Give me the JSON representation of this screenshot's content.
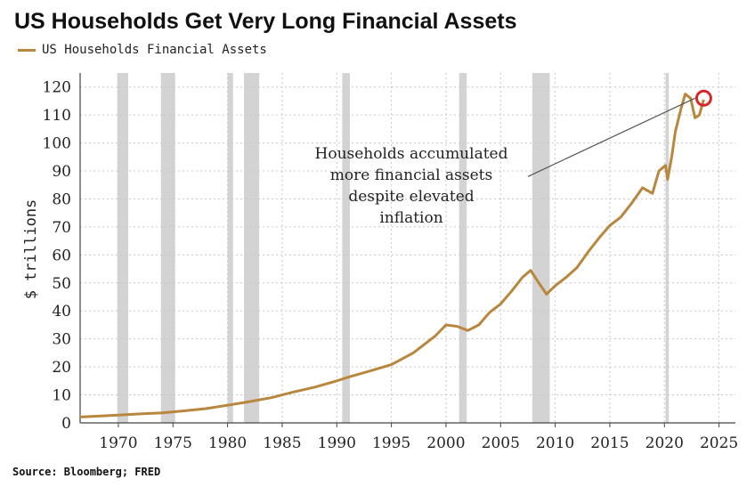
{
  "chart_data": {
    "type": "line",
    "title": "US Households Get Very Long Financial Assets",
    "ylabel": "$ trillions",
    "xlabel": "",
    "xlim": [
      1966.5,
      2026.5
    ],
    "ylim": [
      0,
      125
    ],
    "xticks": [
      1970,
      1975,
      1980,
      1985,
      1990,
      1995,
      2000,
      2005,
      2010,
      2015,
      2020,
      2025
    ],
    "yticks": [
      0,
      10,
      20,
      30,
      40,
      50,
      60,
      70,
      80,
      90,
      100,
      110,
      120
    ],
    "grid": true,
    "legend_position": "top-left",
    "series": [
      {
        "name": "US Households Financial Assets",
        "color": "#b8873d",
        "points": [
          [
            1966.5,
            2.1
          ],
          [
            1968,
            2.4
          ],
          [
            1970,
            2.8
          ],
          [
            1972,
            3.2
          ],
          [
            1974,
            3.6
          ],
          [
            1976,
            4.3
          ],
          [
            1978,
            5.1
          ],
          [
            1980,
            6.3
          ],
          [
            1982,
            7.6
          ],
          [
            1984,
            9.0
          ],
          [
            1986,
            11.0
          ],
          [
            1988,
            12.8
          ],
          [
            1990,
            15.0
          ],
          [
            1991,
            16.3
          ],
          [
            1993,
            18.5
          ],
          [
            1995,
            20.8
          ],
          [
            1997,
            25.0
          ],
          [
            1999,
            31.0
          ],
          [
            2000,
            35.0
          ],
          [
            2001,
            34.5
          ],
          [
            2002,
            33.0
          ],
          [
            2003,
            35.0
          ],
          [
            2004,
            39.5
          ],
          [
            2005,
            42.5
          ],
          [
            2006,
            47.0
          ],
          [
            2007,
            52.0
          ],
          [
            2007.75,
            54.5
          ],
          [
            2008.5,
            50.0
          ],
          [
            2009.2,
            46.0
          ],
          [
            2010,
            49.0
          ],
          [
            2011,
            52.0
          ],
          [
            2012,
            55.5
          ],
          [
            2013,
            61.0
          ],
          [
            2014,
            66.0
          ],
          [
            2015,
            70.5
          ],
          [
            2016,
            73.5
          ],
          [
            2017,
            78.5
          ],
          [
            2018,
            84.0
          ],
          [
            2018.9,
            82.0
          ],
          [
            2019.5,
            90.0
          ],
          [
            2020.1,
            92.0
          ],
          [
            2020.3,
            87.0
          ],
          [
            2020.7,
            96.0
          ],
          [
            2021,
            104.0
          ],
          [
            2021.5,
            112.0
          ],
          [
            2021.9,
            117.5
          ],
          [
            2022.4,
            116.0
          ],
          [
            2022.8,
            109.0
          ],
          [
            2023.2,
            110.0
          ],
          [
            2023.6,
            115.5
          ]
        ]
      }
    ],
    "recessions": [
      [
        1969.9,
        1970.9
      ],
      [
        1973.9,
        1975.2
      ],
      [
        1980.0,
        1980.5
      ],
      [
        1981.5,
        1982.9
      ],
      [
        1990.5,
        1991.2
      ],
      [
        2001.2,
        2001.9
      ],
      [
        2007.9,
        2009.5
      ],
      [
        2020.1,
        2020.4
      ]
    ],
    "annotation": {
      "lines": [
        "Households accumulated",
        "more financial assets",
        "despite elevated",
        "inflation"
      ],
      "arrow_from": [
        2007.5,
        88
      ],
      "arrow_to": [
        2022.8,
        116
      ],
      "highlight_point": [
        2023.6,
        116
      ],
      "highlight_color": "#d62728"
    }
  },
  "source": "Source: Bloomberg; FRED"
}
